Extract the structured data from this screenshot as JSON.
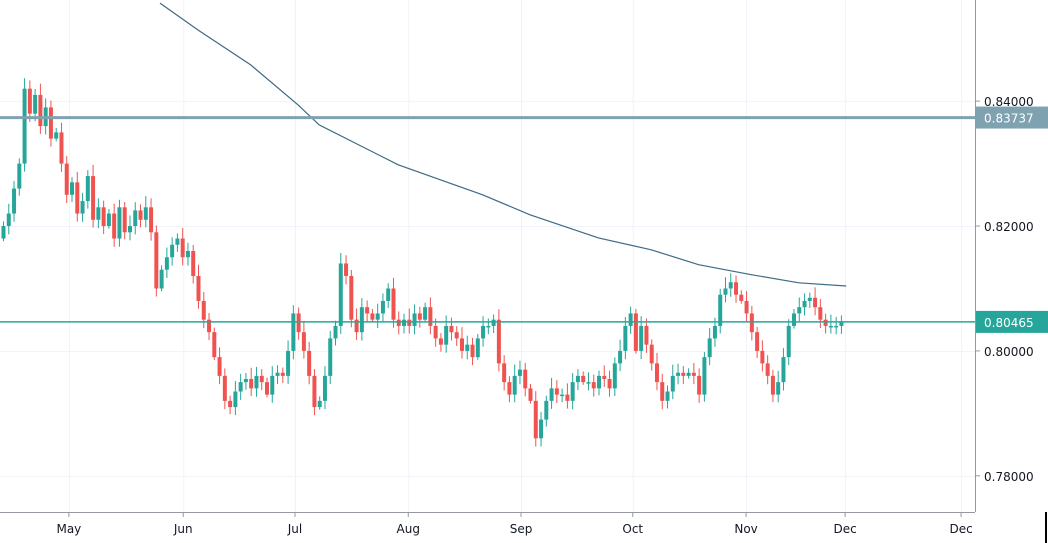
{
  "chart_data": {
    "type": "candlestick",
    "title": "",
    "xlabel": "",
    "ylabel": "",
    "ylim": [
      0.7742,
      0.8562
    ],
    "grid": true,
    "colors": {
      "up": "#26a69a",
      "down": "#ef5350",
      "ma": "#3d6a85",
      "resistance": "#7fa2b0",
      "last_price": "#26a69a",
      "grid": "#f0f3fa",
      "axis": "#9598a1"
    },
    "first_open": 0.818,
    "close": [
      0.82,
      0.822,
      0.826,
      0.83,
      0.842,
      0.838,
      0.841,
      0.836,
      0.839,
      0.834,
      0.835,
      0.83,
      0.825,
      0.827,
      0.822,
      0.824,
      0.828,
      0.821,
      0.823,
      0.82,
      0.822,
      0.818,
      0.823,
      0.819,
      0.82,
      0.8225,
      0.821,
      0.823,
      0.819,
      0.81,
      0.813,
      0.815,
      0.817,
      0.818,
      0.815,
      0.816,
      0.812,
      0.808,
      0.805,
      0.803,
      0.799,
      0.796,
      0.792,
      0.791,
      0.7935,
      0.795,
      0.7955,
      0.794,
      0.796,
      0.795,
      0.793,
      0.796,
      0.7965,
      0.796,
      0.8,
      0.806,
      0.803,
      0.8,
      0.796,
      0.791,
      0.792,
      0.796,
      0.802,
      0.804,
      0.814,
      0.812,
      0.805,
      0.803,
      0.807,
      0.806,
      0.805,
      0.806,
      0.808,
      0.81,
      0.805,
      0.804,
      0.805,
      0.804,
      0.806,
      0.805,
      0.807,
      0.804,
      0.802,
      0.801,
      0.804,
      0.803,
      0.802,
      0.8,
      0.801,
      0.799,
      0.802,
      0.804,
      0.804,
      0.805,
      0.798,
      0.795,
      0.793,
      0.796,
      0.797,
      0.794,
      0.792,
      0.786,
      0.789,
      0.792,
      0.794,
      0.793,
      0.793,
      0.792,
      0.795,
      0.796,
      0.795,
      0.795,
      0.794,
      0.796,
      0.7955,
      0.794,
      0.798,
      0.8,
      0.804,
      0.806,
      0.8,
      0.804,
      0.801,
      0.798,
      0.795,
      0.792,
      0.7935,
      0.796,
      0.7965,
      0.796,
      0.7965,
      0.796,
      0.793,
      0.799,
      0.802,
      0.804,
      0.809,
      0.81,
      0.811,
      0.809,
      0.808,
      0.806,
      0.803,
      0.8,
      0.798,
      0.796,
      0.793,
      0.795,
      0.799,
      0.804,
      0.806,
      0.807,
      0.808,
      0.8085,
      0.807,
      0.805,
      0.804,
      0.804,
      0.804,
      0.8046
    ],
    "wick_padding": 0.0012,
    "moving_average": [
      [
        29.8,
        0.8557
      ],
      [
        37,
        0.8514
      ],
      [
        47,
        0.8458
      ],
      [
        56,
        0.8394
      ],
      [
        60,
        0.8362
      ],
      [
        75,
        0.8298
      ],
      [
        91,
        0.825
      ],
      [
        100,
        0.8218
      ],
      [
        113,
        0.8181
      ],
      [
        123,
        0.8162
      ],
      [
        132,
        0.8138
      ],
      [
        142,
        0.8122
      ],
      [
        151,
        0.8109
      ],
      [
        160,
        0.8104
      ]
    ],
    "horizontal_lines": [
      {
        "name": "resistance",
        "value": 0.83737,
        "label": "0.83737"
      },
      {
        "name": "last-price",
        "value": 0.80465,
        "label": "0.80465"
      }
    ],
    "y_ticks": [
      {
        "value": 0.84,
        "label": "0.84000"
      },
      {
        "value": 0.82,
        "label": "0.82000"
      },
      {
        "value": 0.8,
        "label": "0.80000"
      },
      {
        "value": 0.78,
        "label": "0.78000"
      }
    ],
    "x_ticks": [
      {
        "index": 12.5,
        "label": "May"
      },
      {
        "index": 34.2,
        "label": "Jun"
      },
      {
        "index": 55.4,
        "label": "Jul"
      },
      {
        "index": 76.9,
        "label": "Aug"
      },
      {
        "index": 98.3,
        "label": "Sep"
      },
      {
        "index": 119.5,
        "label": "Oct"
      },
      {
        "index": 141,
        "label": "Nov"
      },
      {
        "index": 159.8,
        "label": "Dec"
      },
      {
        "index": 181.8,
        "label": "Dec"
      }
    ]
  }
}
